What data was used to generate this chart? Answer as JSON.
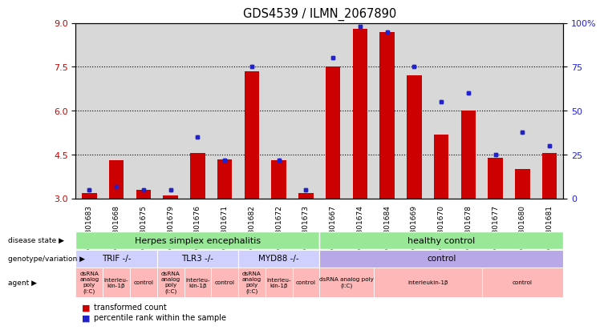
{
  "title": "GDS4539 / ILMN_2067890",
  "samples": [
    "GSM801683",
    "GSM801668",
    "GSM801675",
    "GSM801679",
    "GSM801676",
    "GSM801671",
    "GSM801682",
    "GSM801672",
    "GSM801673",
    "GSM801667",
    "GSM801674",
    "GSM801684",
    "GSM801669",
    "GSM801670",
    "GSM801678",
    "GSM801677",
    "GSM801680",
    "GSM801681"
  ],
  "bar_values": [
    3.2,
    4.3,
    3.3,
    3.1,
    4.55,
    4.35,
    7.35,
    4.3,
    3.2,
    7.5,
    8.8,
    8.7,
    7.2,
    5.2,
    6.0,
    4.4,
    4.0,
    4.55
  ],
  "dot_values": [
    5,
    7,
    5,
    5,
    35,
    22,
    75,
    22,
    5,
    80,
    98,
    95,
    75,
    55,
    60,
    25,
    38,
    30
  ],
  "ylim_left": [
    3,
    9
  ],
  "ylim_right": [
    0,
    100
  ],
  "yticks_left": [
    3,
    4.5,
    6,
    7.5,
    9
  ],
  "yticks_right": [
    0,
    25,
    50,
    75,
    100
  ],
  "bar_color": "#cc0000",
  "dot_color": "#2222cc",
  "bar_baseline": 3.0,
  "disease_herpes_color": "#98e898",
  "disease_healthy_color": "#98e898",
  "geno_trif_color": "#d0d0ff",
  "geno_control_color": "#b8a8e8",
  "agent_color": "#ffb8b8",
  "legend_items": [
    {
      "label": "transformed count",
      "color": "#cc0000"
    },
    {
      "label": "percentile rank within the sample",
      "color": "#2222cc"
    }
  ]
}
